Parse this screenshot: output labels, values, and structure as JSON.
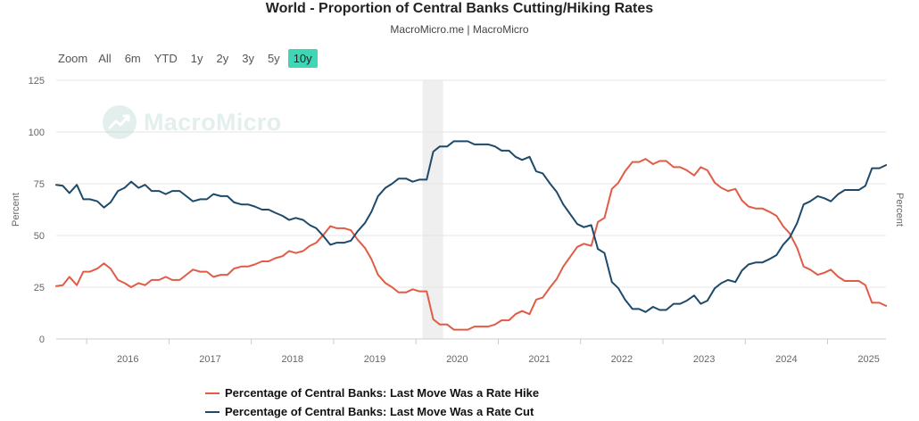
{
  "header": {
    "title": "World - Proportion of Central Banks Cutting/Hiking Rates",
    "subtitle": "MacroMicro.me | MacroMicro"
  },
  "zoom": {
    "label": "Zoom",
    "options": [
      "All",
      "6m",
      "YTD",
      "1y",
      "2y",
      "3y",
      "5y",
      "10y"
    ],
    "selected": "10y"
  },
  "watermark": {
    "text": "MacroMicro"
  },
  "legend": {
    "items": [
      {
        "label": "Percentage of Central Banks: Last Move Was a Rate Hike",
        "color": "#e05c46"
      },
      {
        "label": "Percentage of Central Banks: Last Move Was a Rate Cut",
        "color": "#1d4a6b"
      }
    ]
  },
  "chart_data": {
    "type": "line",
    "ylabel_left": "Percent",
    "ylabel_right": "Percent",
    "ylim": [
      0,
      125
    ],
    "yticks": [
      0,
      25,
      50,
      75,
      100,
      125
    ],
    "xlim": [
      2015.63,
      2025.71
    ],
    "xticks": [
      "2016",
      "2017",
      "2018",
      "2019",
      "2020",
      "2021",
      "2022",
      "2023",
      "2024",
      "2025"
    ],
    "grid": true,
    "legend_position": "bottom",
    "shaded_period": [
      2020.08,
      2020.33
    ],
    "series": [
      {
        "name": "Percentage of Central Banks: Last Move Was a Rate Hike",
        "color": "#e05c46",
        "x": [
          2015.63,
          2015.71,
          2015.79,
          2015.88,
          2015.96,
          2016.04,
          2016.13,
          2016.21,
          2016.29,
          2016.38,
          2016.46,
          2016.54,
          2016.63,
          2016.71,
          2016.79,
          2016.88,
          2016.96,
          2017.04,
          2017.13,
          2017.21,
          2017.29,
          2017.38,
          2017.46,
          2017.54,
          2017.63,
          2017.71,
          2017.79,
          2017.88,
          2017.96,
          2018.04,
          2018.13,
          2018.21,
          2018.29,
          2018.38,
          2018.46,
          2018.54,
          2018.63,
          2018.71,
          2018.79,
          2018.88,
          2018.96,
          2019.04,
          2019.13,
          2019.21,
          2019.29,
          2019.38,
          2019.46,
          2019.54,
          2019.63,
          2019.71,
          2019.79,
          2019.88,
          2019.96,
          2020.04,
          2020.13,
          2020.21,
          2020.29,
          2020.38,
          2020.46,
          2020.54,
          2020.63,
          2020.71,
          2020.79,
          2020.88,
          2020.96,
          2021.04,
          2021.13,
          2021.21,
          2021.29,
          2021.38,
          2021.46,
          2021.54,
          2021.63,
          2021.71,
          2021.79,
          2021.88,
          2021.96,
          2022.04,
          2022.13,
          2022.21,
          2022.29,
          2022.38,
          2022.46,
          2022.54,
          2022.63,
          2022.71,
          2022.79,
          2022.88,
          2022.96,
          2023.04,
          2023.13,
          2023.21,
          2023.29,
          2023.38,
          2023.46,
          2023.54,
          2023.63,
          2023.71,
          2023.79,
          2023.88,
          2023.96,
          2024.04,
          2024.13,
          2024.21,
          2024.29,
          2024.38,
          2024.46,
          2024.54,
          2024.63,
          2024.71,
          2024.79,
          2024.88,
          2024.96,
          2025.04,
          2025.13,
          2025.21,
          2025.29,
          2025.38,
          2025.46,
          2025.54,
          2025.63,
          2025.71
        ],
        "values": [
          25.5,
          26,
          30,
          26,
          32.5,
          32.5,
          34,
          36.5,
          34,
          28.5,
          27,
          25,
          27,
          26,
          28.5,
          28.5,
          30,
          28.5,
          28.5,
          31,
          33.5,
          32.5,
          32.5,
          30,
          31,
          31,
          34,
          35,
          35,
          36,
          37.5,
          37.5,
          39,
          40,
          42.5,
          41.5,
          42.5,
          45,
          46.5,
          50.5,
          54.5,
          53.5,
          53.5,
          52.5,
          48,
          44,
          38.5,
          31,
          27,
          25,
          22.5,
          22.5,
          24,
          23,
          23,
          9.5,
          7,
          7,
          4.5,
          4.5,
          4.5,
          6,
          6,
          6,
          7,
          9,
          9,
          12,
          13.5,
          12,
          19,
          20,
          25,
          29,
          35,
          40,
          44.5,
          46,
          45,
          56.5,
          58.5,
          72.5,
          75.5,
          81,
          85.5,
          85.5,
          87,
          84.5,
          86,
          86,
          83,
          83,
          81.5,
          79,
          83,
          81.5,
          75.5,
          73,
          71.5,
          72.5,
          67,
          64,
          63,
          63,
          61.5,
          59.5,
          54.5,
          51,
          44,
          35,
          33.5,
          31,
          32,
          33.5,
          30,
          28,
          28,
          28,
          26,
          17.5,
          17.5,
          16
        ]
      },
      {
        "name": "Percentage of Central Banks: Last Move Was a Rate Cut",
        "color": "#1d4a6b",
        "x": [
          2015.63,
          2015.71,
          2015.79,
          2015.88,
          2015.96,
          2016.04,
          2016.13,
          2016.21,
          2016.29,
          2016.38,
          2016.46,
          2016.54,
          2016.63,
          2016.71,
          2016.79,
          2016.88,
          2016.96,
          2017.04,
          2017.13,
          2017.21,
          2017.29,
          2017.38,
          2017.46,
          2017.54,
          2017.63,
          2017.71,
          2017.79,
          2017.88,
          2017.96,
          2018.04,
          2018.13,
          2018.21,
          2018.29,
          2018.38,
          2018.46,
          2018.54,
          2018.63,
          2018.71,
          2018.79,
          2018.88,
          2018.96,
          2019.04,
          2019.13,
          2019.21,
          2019.29,
          2019.38,
          2019.46,
          2019.54,
          2019.63,
          2019.71,
          2019.79,
          2019.88,
          2019.96,
          2020.04,
          2020.13,
          2020.21,
          2020.29,
          2020.38,
          2020.46,
          2020.54,
          2020.63,
          2020.71,
          2020.79,
          2020.88,
          2020.96,
          2021.04,
          2021.13,
          2021.21,
          2021.29,
          2021.38,
          2021.46,
          2021.54,
          2021.63,
          2021.71,
          2021.79,
          2021.88,
          2021.96,
          2022.04,
          2022.13,
          2022.21,
          2022.29,
          2022.38,
          2022.46,
          2022.54,
          2022.63,
          2022.71,
          2022.79,
          2022.88,
          2022.96,
          2023.04,
          2023.13,
          2023.21,
          2023.29,
          2023.38,
          2023.46,
          2023.54,
          2023.63,
          2023.71,
          2023.79,
          2023.88,
          2023.96,
          2024.04,
          2024.13,
          2024.21,
          2024.29,
          2024.38,
          2024.46,
          2024.54,
          2024.63,
          2024.71,
          2024.79,
          2024.88,
          2024.96,
          2025.04,
          2025.13,
          2025.21,
          2025.29,
          2025.38,
          2025.46,
          2025.54,
          2025.63,
          2025.71
        ],
        "values": [
          74.5,
          74,
          70.5,
          74.5,
          67.5,
          67.5,
          66.5,
          63.5,
          66,
          71.5,
          73,
          76,
          73,
          74.5,
          71.5,
          71.5,
          70,
          71.5,
          71.5,
          69,
          66.5,
          67.5,
          67.5,
          70,
          69,
          69,
          66,
          65,
          65,
          64,
          62.5,
          62.5,
          61,
          59.5,
          57.5,
          58.5,
          57.5,
          55,
          53.5,
          49.5,
          45.5,
          46.5,
          46.5,
          47.5,
          52,
          56,
          61.5,
          69,
          73,
          75,
          77.5,
          77.5,
          76,
          77,
          77,
          90.5,
          93,
          93,
          95.5,
          95.5,
          95.5,
          94,
          94,
          94,
          93,
          91,
          91,
          88,
          86.5,
          88,
          81,
          80,
          75,
          71,
          65,
          60,
          55.5,
          54,
          55,
          43.5,
          41.5,
          27.5,
          24.5,
          19,
          14.5,
          14.5,
          13,
          15.5,
          14,
          14,
          17,
          17,
          18.5,
          21,
          17,
          18.5,
          24.5,
          27,
          28.5,
          27.5,
          33,
          36,
          37,
          37,
          38.5,
          40.5,
          45.5,
          49,
          56,
          65,
          66.5,
          69,
          68,
          66.5,
          70,
          72,
          72,
          72,
          74,
          82.5,
          82.5,
          84
        ]
      }
    ]
  }
}
